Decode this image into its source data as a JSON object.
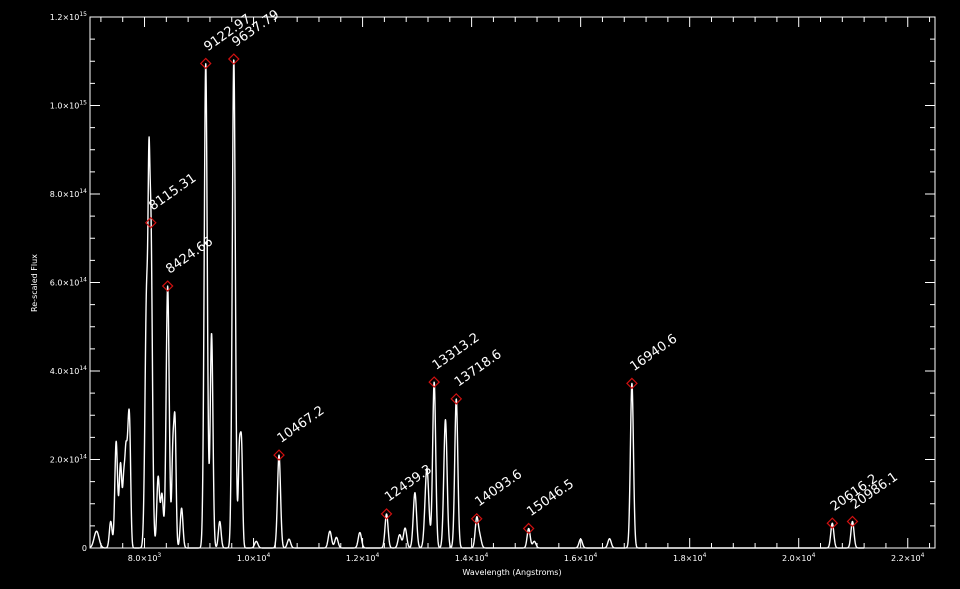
{
  "chart_data": {
    "type": "line",
    "xlabel": "Wavelength (Angstroms)",
    "ylabel": "Re-scaled Flux",
    "xlim": [
      7000,
      22500
    ],
    "ylim": [
      0,
      1200000000000000.0
    ],
    "x_ticks": [
      {
        "value": 8000,
        "mant": "8.0",
        "exp": "3"
      },
      {
        "value": 10000,
        "mant": "1.0",
        "exp": "4"
      },
      {
        "value": 12000,
        "mant": "1.2",
        "exp": "4"
      },
      {
        "value": 14000,
        "mant": "1.4",
        "exp": "4"
      },
      {
        "value": 16000,
        "mant": "1.6",
        "exp": "4"
      },
      {
        "value": 18000,
        "mant": "1.8",
        "exp": "4"
      },
      {
        "value": 20000,
        "mant": "2.0",
        "exp": "4"
      },
      {
        "value": 22000,
        "mant": "2.2",
        "exp": "4"
      }
    ],
    "y_ticks": [
      {
        "value": 0,
        "mant": "0",
        "exp": ""
      },
      {
        "value": 200000000000000.0,
        "mant": "2.0",
        "exp": "14"
      },
      {
        "value": 400000000000000.0,
        "mant": "4.0",
        "exp": "14"
      },
      {
        "value": 600000000000000.0,
        "mant": "6.0",
        "exp": "14"
      },
      {
        "value": 800000000000000.0,
        "mant": "8.0",
        "exp": "14"
      },
      {
        "value": 1000000000000000.0,
        "mant": "1.0",
        "exp": "15"
      },
      {
        "value": 1200000000000000.0,
        "mant": "1.2",
        "exp": "15"
      }
    ],
    "tick_base": "10",
    "peaks": [
      {
        "label": "8115.31",
        "x": 8115.31,
        "y": 735000000000000.0
      },
      {
        "label": "8424.66",
        "x": 8424.66,
        "y": 592000000000000.0
      },
      {
        "label": "9122.97",
        "x": 9122.97,
        "y": 1095000000000000.0
      },
      {
        "label": "9637.79",
        "x": 9637.79,
        "y": 1105000000000000.0
      },
      {
        "label": "10467.2",
        "x": 10467.2,
        "y": 210000000000000.0
      },
      {
        "label": "12439.3",
        "x": 12439.3,
        "y": 77000000000000.0
      },
      {
        "label": "13313.2",
        "x": 13313.2,
        "y": 375000000000000.0
      },
      {
        "label": "13718.6",
        "x": 13718.6,
        "y": 337000000000000.0
      },
      {
        "label": "14093.6",
        "x": 14093.6,
        "y": 66000000000000.0
      },
      {
        "label": "15046.5",
        "x": 15046.5,
        "y": 44000000000000.0
      },
      {
        "label": "16940.6",
        "x": 16940.6,
        "y": 372000000000000.0
      },
      {
        "label": "20616.2",
        "x": 20616.2,
        "y": 56000000000000.0
      },
      {
        "label": "20986.1",
        "x": 20986.1,
        "y": 60000000000000.0
      }
    ],
    "minor_lines": [
      {
        "x": 7120,
        "y": 38000000000000.0,
        "w": 45
      },
      {
        "x": 7380,
        "y": 60000000000000.0,
        "w": 25
      },
      {
        "x": 7480,
        "y": 240000000000000.0,
        "w": 25
      },
      {
        "x": 7560,
        "y": 190000000000000.0,
        "w": 25
      },
      {
        "x": 7620,
        "y": 140000000000000.0,
        "w": 20
      },
      {
        "x": 7660,
        "y": 195000000000000.0,
        "w": 20
      },
      {
        "x": 7700,
        "y": 190000000000000.0,
        "w": 20
      },
      {
        "x": 7730,
        "y": 220000000000000.0,
        "w": 20
      },
      {
        "x": 8040,
        "y": 580000000000000.0,
        "w": 30
      },
      {
        "x": 8080,
        "y": 350000000000000.0,
        "w": 15
      },
      {
        "x": 8250,
        "y": 160000000000000.0,
        "w": 25
      },
      {
        "x": 8320,
        "y": 120000000000000.0,
        "w": 25
      },
      {
        "x": 8520,
        "y": 210000000000000.0,
        "w": 20
      },
      {
        "x": 8560,
        "y": 270000000000000.0,
        "w": 20
      },
      {
        "x": 8680,
        "y": 90000000000000.0,
        "w": 25
      },
      {
        "x": 9230,
        "y": 485000000000000.0,
        "w": 25
      },
      {
        "x": 9380,
        "y": 60000000000000.0,
        "w": 25
      },
      {
        "x": 9740,
        "y": 210000000000000.0,
        "w": 20
      },
      {
        "x": 9780,
        "y": 220000000000000.0,
        "w": 20
      },
      {
        "x": 10050,
        "y": 15000000000000.0,
        "w": 30
      },
      {
        "x": 10650,
        "y": 20000000000000.0,
        "w": 30
      },
      {
        "x": 11400,
        "y": 38000000000000.0,
        "w": 30
      },
      {
        "x": 11520,
        "y": 24000000000000.0,
        "w": 30
      },
      {
        "x": 11950,
        "y": 35000000000000.0,
        "w": 30
      },
      {
        "x": 12680,
        "y": 30000000000000.0,
        "w": 30
      },
      {
        "x": 12780,
        "y": 45000000000000.0,
        "w": 30
      },
      {
        "x": 12960,
        "y": 125000000000000.0,
        "w": 30
      },
      {
        "x": 13180,
        "y": 180000000000000.0,
        "w": 35
      },
      {
        "x": 13520,
        "y": 290000000000000.0,
        "w": 30
      },
      {
        "x": 14150,
        "y": 25000000000000.0,
        "w": 30
      },
      {
        "x": 15150,
        "y": 15000000000000.0,
        "w": 30
      },
      {
        "x": 16000,
        "y": 20000000000000.0,
        "w": 30
      },
      {
        "x": 16530,
        "y": 21000000000000.0,
        "w": 30
      }
    ]
  }
}
